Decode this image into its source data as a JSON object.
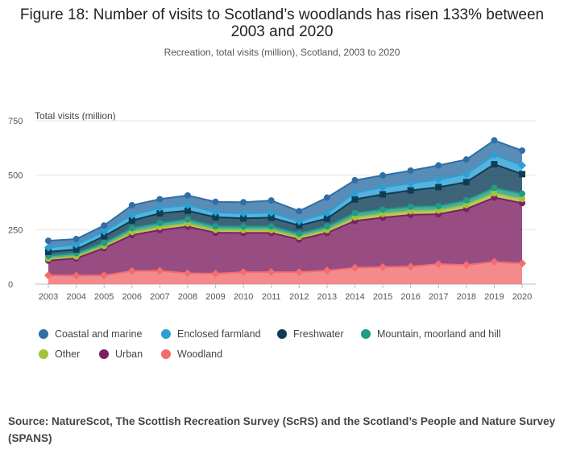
{
  "chart_data": {
    "type": "area",
    "title": "Figure 18: Number of visits to Scotland’s woodlands has risen 133% between 2003 and 2020",
    "subtitle": "Recreation, total visits (million), Scotland, 2003 to 2020",
    "ylabel": "Total visits (million)",
    "xlabel": "",
    "ylim": [
      0,
      750
    ],
    "yticks": [
      0,
      250,
      500,
      750
    ],
    "stacked": true,
    "grid": true,
    "legend_position": "bottom",
    "x": [
      "2003",
      "2004",
      "2005",
      "2006",
      "2007",
      "2008",
      "2009",
      "2010",
      "2011",
      "2012",
      "2013",
      "2014",
      "2015",
      "2016",
      "2017",
      "2018",
      "2019",
      "2020"
    ],
    "series": [
      {
        "name": "Woodland",
        "color": "#f26d6f",
        "marker": "diamond",
        "values": [
          40,
          39,
          40,
          60,
          61,
          50,
          48,
          55,
          55,
          55,
          62,
          75,
          78,
          80,
          92,
          88,
          102,
          95
        ]
      },
      {
        "name": "Urban",
        "color": "#7d2063",
        "marker": "circle",
        "values": [
          68,
          79,
          125,
          165,
          187,
          214,
          188,
          180,
          180,
          150,
          173,
          215,
          227,
          238,
          229,
          257,
          295,
          277
        ]
      },
      {
        "name": "Other",
        "color": "#a3c23b",
        "marker": "circle",
        "values": [
          9,
          9,
          10,
          14,
          14,
          14,
          13,
          13,
          13,
          12,
          13,
          16,
          17,
          17,
          17,
          18,
          20,
          19
        ]
      },
      {
        "name": "Mountain, moorland and hill",
        "color": "#1f9b86",
        "marker": "circle",
        "values": [
          13,
          15,
          14,
          18,
          18,
          19,
          16,
          16,
          17,
          15,
          17,
          20,
          20,
          20,
          20,
          22,
          25,
          24
        ]
      },
      {
        "name": "Freshwater",
        "color": "#0d3d56",
        "marker": "square",
        "values": [
          18,
          17,
          31,
          35,
          45,
          40,
          42,
          38,
          40,
          37,
          36,
          63,
          70,
          75,
          87,
          83,
          108,
          90
        ]
      },
      {
        "name": "Enclosed farmland",
        "color": "#2ca0d4",
        "marker": "diamond",
        "values": [
          20,
          22,
          22,
          25,
          25,
          25,
          23,
          22,
          23,
          19,
          25,
          30,
          32,
          33,
          35,
          37,
          43,
          40
        ]
      },
      {
        "name": "Coastal and marine",
        "color": "#2f6fa5",
        "marker": "circle",
        "values": [
          31,
          26,
          27,
          45,
          40,
          45,
          48,
          52,
          56,
          47,
          71,
          58,
          55,
          58,
          65,
          67,
          67,
          68
        ]
      }
    ]
  },
  "legend": {
    "row1": [
      {
        "label": "Coastal and marine",
        "color": "#2f6fa5"
      },
      {
        "label": "Enclosed farmland",
        "color": "#2ca0d4"
      },
      {
        "label": "Freshwater",
        "color": "#0d3d56"
      },
      {
        "label": "Mountain, moorland and hill",
        "color": "#1f9b86"
      }
    ],
    "row2": [
      {
        "label": "Other",
        "color": "#a3c23b"
      },
      {
        "label": "Urban",
        "color": "#7d2063"
      },
      {
        "label": "Woodland",
        "color": "#f26d6f"
      }
    ]
  },
  "source": "Source: NatureScot, The Scottish Recreation Survey (ScRS) and the Scotland’s People and Nature Survey (SPANS)"
}
